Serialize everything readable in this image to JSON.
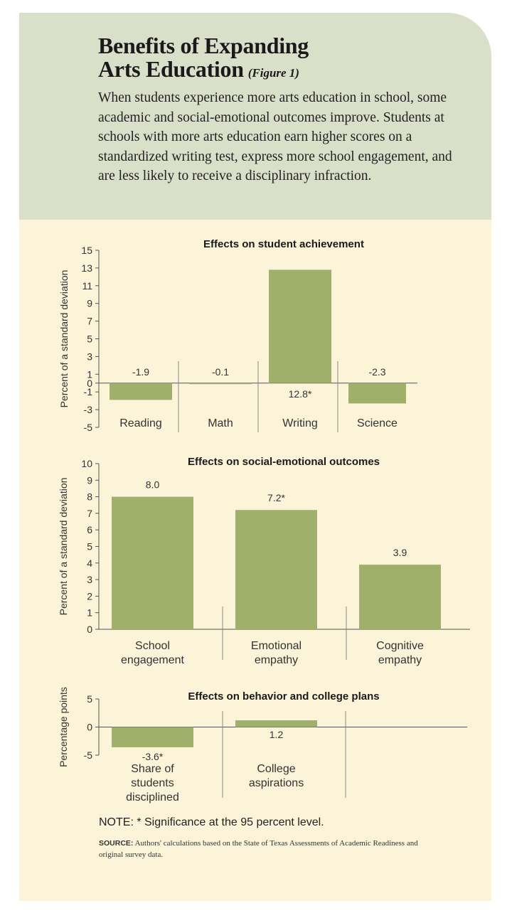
{
  "header": {
    "title_line1": "Benefits of Expanding",
    "title_line2": "Arts Education",
    "figure_label": "(Figure 1)",
    "intro": "When students experience more arts education in school, some academic and social-emotional outcomes improve. Students at schools with more arts education earn higher scores on a standardized writing test, express more school engagement, and are less likely to receive a disciplinary infraction."
  },
  "colors": {
    "bar": "#9fb06a",
    "header_bg": "#d9dfc9",
    "panel_bg": "#fbf4d8"
  },
  "chart_data": [
    {
      "type": "bar",
      "title": "Effects on student achievement",
      "ylabel": "Percent of a standard deviation",
      "ylim": [
        -5,
        15
      ],
      "yticks": [
        15,
        13,
        11,
        9,
        7,
        5,
        3,
        1,
        0,
        -1,
        -3,
        -5
      ],
      "categories": [
        [
          "Reading"
        ],
        [
          "Math"
        ],
        [
          "Writing"
        ],
        [
          "Science"
        ]
      ],
      "values": [
        -1.9,
        -0.1,
        12.8,
        -2.3
      ],
      "value_labels": [
        "-1.9",
        "-0.1",
        "12.8*",
        "-2.3"
      ],
      "grid": false
    },
    {
      "type": "bar",
      "title": "Effects on social-emotional outcomes",
      "ylabel": "Percent of a standard deviation",
      "ylim": [
        0,
        10
      ],
      "yticks": [
        10,
        9,
        8,
        7,
        6,
        5,
        4,
        3,
        2,
        1,
        0
      ],
      "categories": [
        [
          "School",
          "engagement"
        ],
        [
          "Emotional",
          "empathy"
        ],
        [
          "Cognitive",
          "empathy"
        ]
      ],
      "values": [
        8.0,
        7.2,
        3.9
      ],
      "value_labels": [
        "8.0",
        "7.2*",
        "3.9"
      ],
      "grid": false
    },
    {
      "type": "bar",
      "title": "Effects on behavior and college plans",
      "ylabel": "Percentage points",
      "ylim": [
        -5,
        5
      ],
      "yticks": [
        5,
        0,
        -5
      ],
      "categories": [
        [
          "Share of",
          "students",
          "disciplined"
        ],
        [
          "College",
          "aspirations"
        ]
      ],
      "values": [
        -3.6,
        1.2
      ],
      "value_labels": [
        "-3.6*",
        "1.2"
      ],
      "grid": false
    }
  ],
  "footer": {
    "note": "NOTE: * Significance at the 95 percent level.",
    "source_label": "SOURCE:",
    "source_text": " Authors' calculations based on the State of Texas Assessments of Academic Readiness and original survey data."
  }
}
